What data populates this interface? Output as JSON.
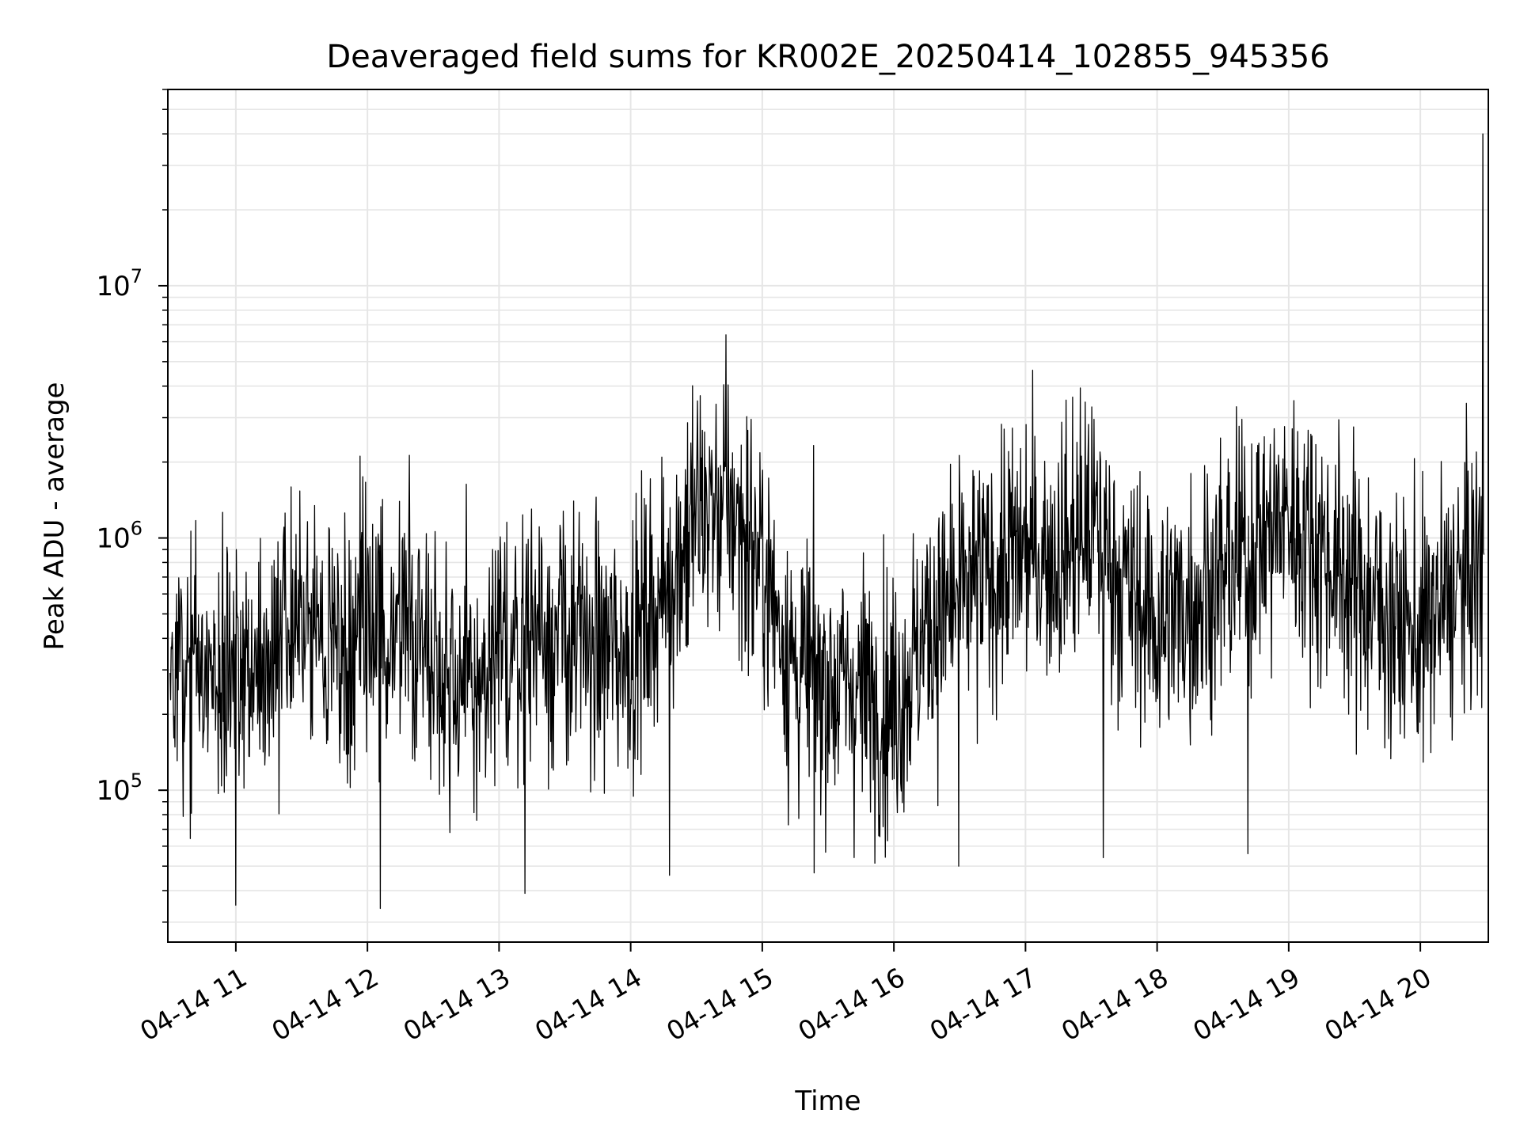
{
  "chart_data": {
    "type": "line",
    "title": "Deaveraged field sums for KR002E_20250414_102855_945356",
    "xlabel": "Time",
    "ylabel": "Peak ADU - average",
    "yscale": "log",
    "grid": true,
    "xlim": [
      "2025-04-14 10:29",
      "2025-04-14 20:31"
    ],
    "ylim": [
      25000,
      60000000
    ],
    "x_ticks": [
      "2025-04-14 11:00",
      "2025-04-14 12:00",
      "2025-04-14 13:00",
      "2025-04-14 14:00",
      "2025-04-14 15:00",
      "2025-04-14 16:00",
      "2025-04-14 17:00",
      "2025-04-14 18:00",
      "2025-04-14 19:00",
      "2025-04-14 20:00"
    ],
    "x_tick_labels": [
      "04-14 11",
      "04-14 12",
      "04-14 13",
      "04-14 14",
      "04-14 15",
      "04-14 16",
      "04-14 17",
      "04-14 18",
      "04-14 19",
      "04-14 20"
    ],
    "y_ticks": [
      100000,
      1000000,
      10000000
    ],
    "y_tick_labels": [
      {
        "base": "10",
        "exp": "5"
      },
      {
        "base": "10",
        "exp": "6"
      },
      {
        "base": "10",
        "exp": "7"
      }
    ],
    "series": [
      {
        "color": "#000000",
        "x": [
          "2025-04-14 10:30",
          "2025-04-14 10:45",
          "2025-04-14 11:00",
          "2025-04-14 11:05",
          "2025-04-14 11:15",
          "2025-04-14 11:30",
          "2025-04-14 11:45",
          "2025-04-14 11:55",
          "2025-04-14 12:00",
          "2025-04-14 12:15",
          "2025-04-14 12:30",
          "2025-04-14 12:45",
          "2025-04-14 12:55",
          "2025-04-14 13:00",
          "2025-04-14 13:15",
          "2025-04-14 13:30",
          "2025-04-14 13:45",
          "2025-04-14 14:00",
          "2025-04-14 14:15",
          "2025-04-14 14:30",
          "2025-04-14 14:45",
          "2025-04-14 15:00",
          "2025-04-14 15:15",
          "2025-04-14 15:30",
          "2025-04-14 15:45",
          "2025-04-14 16:00",
          "2025-04-14 16:15",
          "2025-04-14 16:30",
          "2025-04-14 16:45",
          "2025-04-14 17:00",
          "2025-04-14 17:15",
          "2025-04-14 17:30",
          "2025-04-14 17:45",
          "2025-04-14 18:00",
          "2025-04-14 18:15",
          "2025-04-14 18:30",
          "2025-04-14 18:45",
          "2025-04-14 19:00",
          "2025-04-14 19:15",
          "2025-04-14 19:30",
          "2025-04-14 19:45",
          "2025-04-14 20:00",
          "2025-04-14 20:15",
          "2025-04-14 20:25"
        ],
        "y": [
          330000,
          370000,
          310000,
          300000,
          350000,
          420000,
          400000,
          360000,
          430000,
          480000,
          370000,
          250000,
          240000,
          330000,
          460000,
          400000,
          360000,
          380000,
          620000,
          1250000,
          1350000,
          780000,
          300000,
          270000,
          250000,
          220000,
          430000,
          580000,
          720000,
          900000,
          850000,
          1150000,
          650000,
          450000,
          560000,
          700000,
          980000,
          1200000,
          900000,
          650000,
          500000,
          400000,
          600000,
          750000
        ],
        "ymin_spikes": [
          35000,
          34000,
          39000,
          46000,
          47000,
          50000,
          54000,
          56000
        ],
        "ymax_spike": 40000000
      }
    ]
  }
}
